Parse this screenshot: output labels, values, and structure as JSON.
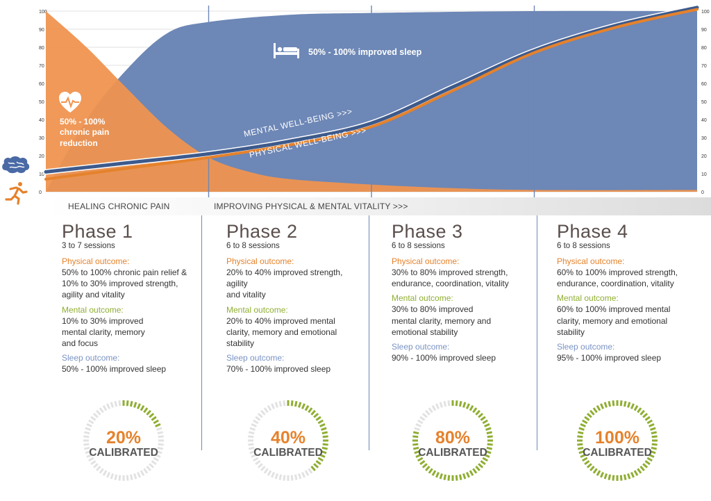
{
  "chart_data": {
    "type": "area",
    "x_phases": 4,
    "y_ticks": [
      0,
      10,
      20,
      30,
      40,
      50,
      60,
      70,
      80,
      90,
      100
    ],
    "ylim": [
      0,
      100
    ],
    "series": [
      {
        "name": "50% - 100% improved sleep",
        "kind": "area",
        "color": "#6d87b6",
        "values": [
          [
            0,
            0
          ],
          [
            0.25,
            40
          ],
          [
            0.5,
            68
          ],
          [
            0.75,
            88
          ],
          [
            1,
            94
          ],
          [
            1.5,
            98
          ],
          [
            2,
            99
          ],
          [
            3,
            100
          ],
          [
            4,
            100
          ]
        ]
      },
      {
        "name": "50% - 100% chronic pain reduction",
        "kind": "area",
        "color": "#ef9350",
        "values": [
          [
            0,
            100
          ],
          [
            0.25,
            80
          ],
          [
            0.5,
            57
          ],
          [
            0.75,
            35
          ],
          [
            1,
            19
          ],
          [
            1.25,
            11
          ],
          [
            1.5,
            7
          ],
          [
            2,
            4
          ],
          [
            2.5,
            2
          ],
          [
            3,
            1
          ],
          [
            4,
            1
          ]
        ]
      },
      {
        "name": "MENTAL WELL-BEING >>>",
        "kind": "line",
        "color": "#3d5a8c",
        "values": [
          [
            0,
            11
          ],
          [
            0.5,
            16
          ],
          [
            1,
            21
          ],
          [
            1.5,
            28
          ],
          [
            2,
            38
          ],
          [
            2.5,
            58
          ],
          [
            3,
            78
          ],
          [
            3.5,
            92
          ],
          [
            4,
            102
          ]
        ]
      },
      {
        "name": "PHYSICAL WELL-BEING >>>",
        "kind": "line",
        "color": "#e5822c",
        "values": [
          [
            0,
            7
          ],
          [
            0.5,
            13
          ],
          [
            1,
            19
          ],
          [
            1.5,
            26
          ],
          [
            2,
            36
          ],
          [
            2.5,
            56
          ],
          [
            3,
            77
          ],
          [
            3.5,
            91
          ],
          [
            4,
            101
          ]
        ]
      }
    ],
    "annotations": {
      "sleep_label": "50% - 100%  improved sleep",
      "pain_label_1": "50% - 100%",
      "pain_label_2": "chronic pain",
      "pain_label_3": "reduction",
      "mental_label": "MENTAL WELL-BEING >>>",
      "physical_label": "PHYSICAL WELL-BEING >>>"
    },
    "colors": {
      "sleep_area": "#6d87b6",
      "pain_area": "#ef9350",
      "mental_line": "#3d5a8c",
      "physical_line": "#e5822c",
      "calibrated_green": "#8fae32"
    },
    "icons": [
      "bed-icon",
      "heart-pulse-icon",
      "brain-icon",
      "runner-icon"
    ]
  },
  "band": {
    "left_label": "HEALING CHRONIC PAIN",
    "right_label": "IMPROVING  PHYSICAL & MENTAL VITALITY >>>"
  },
  "phases": [
    {
      "title": "Phase 1",
      "sessions": "3 to 7 sessions",
      "physical_label": "Physical outcome:",
      "physical_text": "50% to 100% chronic pain relief &\n10% to 30% improved strength,\nagility and vitality",
      "mental_label": "Mental outcome:",
      "mental_text": "10% to 30% improved\nmental clarity, memory\nand focus",
      "sleep_label": "Sleep outcome:",
      "sleep_text": "50% - 100% improved sleep",
      "calibrated_pct": "20%",
      "calibrated_value": 20,
      "calibrated_label": "CALIBRATED"
    },
    {
      "title": "Phase 2",
      "sessions": "6 to 8 sessions",
      "physical_label": "Physical outcome:",
      "physical_text": "20% to 40% improved strength,\nagility\nand vitality",
      "mental_label": "Mental outcome:",
      "mental_text": "20% to 40% improved mental\nclarity, memory and emotional\nstability",
      "sleep_label": "Sleep outcome:",
      "sleep_text": "70% - 100% improved sleep",
      "calibrated_pct": "40%",
      "calibrated_value": 40,
      "calibrated_label": "CALIBRATED"
    },
    {
      "title": "Phase 3",
      "sessions": "6 to 8 sessions",
      "physical_label": "Physical outcome:",
      "physical_text": "30% to 80% improved strength,\nendurance, coordination, vitality",
      "mental_label": "Mental outcome:",
      "mental_text": "30% to 80% improved\nmental clarity, memory and\nemotional stability",
      "sleep_label": "Sleep outcome:",
      "sleep_text": "90% - 100% improved sleep",
      "calibrated_pct": "80%",
      "calibrated_value": 80,
      "calibrated_label": "CALIBRATED"
    },
    {
      "title": "Phase 4",
      "sessions": "6 to 8 sessions",
      "physical_label": "Physical outcome:",
      "physical_text": "60% to 100% improved strength,\nendurance, coordination, vitality",
      "mental_label": "Mental outcome:",
      "mental_text": "60% to 100% improved mental\nclarity, memory and emotional\nstability",
      "sleep_label": "Sleep outcome:",
      "sleep_text": "95% - 100% improved sleep",
      "calibrated_pct": "100%",
      "calibrated_value": 100,
      "calibrated_label": "CALIBRATED"
    }
  ]
}
